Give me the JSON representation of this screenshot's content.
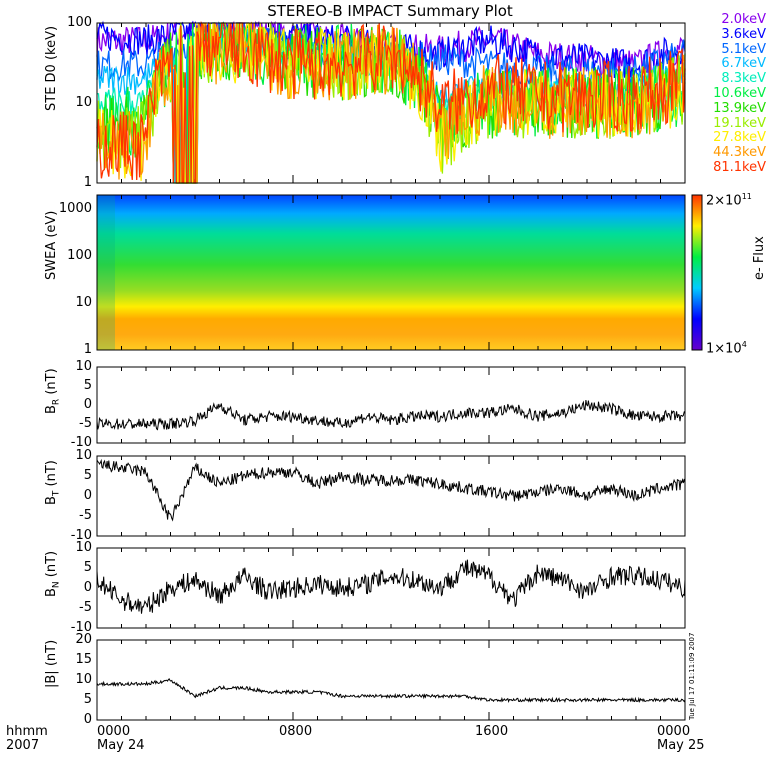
{
  "chart_data": {
    "type": "line",
    "title": "STEREO-B IMPACT Summary Plot",
    "x_axis": {
      "label_rows": [
        "hhmm",
        "2007"
      ],
      "range_hours": [
        0,
        24
      ],
      "ticks": [
        {
          "h": 0,
          "l1": "0000",
          "l2": "May 24"
        },
        {
          "h": 8,
          "l1": "0800",
          "l2": ""
        },
        {
          "h": 16,
          "l1": "1600",
          "l2": ""
        },
        {
          "h": 24,
          "l1": "0000",
          "l2": "May 25"
        }
      ]
    },
    "timestamp": "Tue Jul 17 01:11:09 2007",
    "ste": {
      "ylabel": "STE D0 (keV)",
      "ylim": [
        1,
        100
      ],
      "yscale": "log",
      "ticks": [
        "1",
        "10",
        "100"
      ],
      "hours": [
        0,
        2,
        4,
        6,
        8,
        10,
        12,
        14,
        16,
        18,
        20,
        22,
        24
      ],
      "channels": [
        {
          "name": "2.0keV",
          "color": "#8800ee",
          "values": [
            60,
            60,
            80,
            100,
            70,
            60,
            50,
            45,
            60,
            40,
            35,
            30,
            50
          ]
        },
        {
          "name": "3.6keV",
          "color": "#0000ff",
          "values": [
            70,
            60,
            80,
            100,
            70,
            60,
            50,
            40,
            60,
            40,
            35,
            30,
            50
          ]
        },
        {
          "name": "5.1keV",
          "color": "#0066ff",
          "values": [
            30,
            30,
            60,
            70,
            50,
            40,
            40,
            35,
            30,
            25,
            25,
            25,
            40
          ]
        },
        {
          "name": "6.7keV",
          "color": "#00bbff",
          "values": [
            20,
            20,
            50,
            60,
            40,
            35,
            35,
            12,
            15,
            15,
            15,
            15,
            25
          ]
        },
        {
          "name": "8.3keV",
          "color": "#00eebb",
          "values": [
            10,
            10,
            50,
            60,
            40,
            35,
            35,
            8,
            12,
            12,
            12,
            12,
            20
          ]
        },
        {
          "name": "10.6keV",
          "color": "#00ee44",
          "values": [
            6,
            6,
            50,
            55,
            35,
            35,
            35,
            5,
            10,
            10,
            10,
            10,
            15
          ]
        },
        {
          "name": "13.9keV",
          "color": "#22dd00",
          "values": [
            5,
            5,
            50,
            50,
            35,
            30,
            35,
            4,
            10,
            10,
            10,
            10,
            15
          ]
        },
        {
          "name": "19.1keV",
          "color": "#99ee00",
          "values": [
            4,
            4,
            50,
            50,
            35,
            30,
            35,
            3,
            10,
            10,
            10,
            10,
            15
          ]
        },
        {
          "name": "27.8keV",
          "color": "#ffee00",
          "values": [
            3,
            3,
            50,
            45,
            30,
            30,
            35,
            3,
            10,
            10,
            10,
            10,
            15
          ]
        },
        {
          "name": "44.3keV",
          "color": "#ff9900",
          "values": [
            3,
            3,
            50,
            45,
            30,
            30,
            35,
            3,
            12,
            10,
            10,
            10,
            15
          ]
        },
        {
          "name": "81.1keV",
          "color": "#ff3300",
          "values": [
            3,
            3,
            60,
            45,
            30,
            30,
            40,
            8,
            15,
            12,
            12,
            12,
            18
          ]
        }
      ]
    },
    "swea": {
      "type": "heatmap",
      "ylabel": "SWEA (eV)",
      "ylim": [
        1,
        2000
      ],
      "yscale": "log",
      "ticks": [
        "1",
        "10",
        "100",
        "1000"
      ],
      "colorbar": {
        "label": "e- Flux",
        "max_label": "2×10",
        "max_exp": "11",
        "min_label": "1×10",
        "min_exp": "4"
      }
    },
    "mag": [
      {
        "ylabel": "B",
        "sub": "R",
        "unit": " (nT)",
        "ylim": [
          -10,
          10
        ],
        "ticks": [
          "-10",
          "-5",
          "0",
          "5",
          "10"
        ],
        "values": [
          -5,
          -5,
          -5,
          -5,
          -4,
          0,
          -4,
          -3,
          -3,
          -4,
          -5,
          -3,
          -4,
          -3,
          -3,
          -2,
          -2,
          -1,
          -3,
          -2,
          0,
          -1,
          -3,
          -3,
          -3
        ]
      },
      {
        "ylabel": "B",
        "sub": "T",
        "unit": " (nT)",
        "ylim": [
          -10,
          10
        ],
        "ticks": [
          "-10",
          "-5",
          "0",
          "5",
          "10"
        ],
        "values": [
          8,
          7,
          6,
          -6,
          7,
          3,
          5,
          6,
          6,
          3,
          5,
          4,
          4,
          4,
          3,
          2,
          1,
          0,
          1,
          2,
          0,
          2,
          0,
          2,
          3
        ]
      },
      {
        "ylabel": "B",
        "sub": "N",
        "unit": " (nT)",
        "ylim": [
          -10,
          10
        ],
        "ticks": [
          "-10",
          "-5",
          "0",
          "5",
          "10"
        ],
        "values": [
          2,
          -3,
          -5,
          0,
          2,
          -2,
          3,
          -1,
          0,
          1,
          0,
          1,
          3,
          2,
          0,
          5,
          3,
          -3,
          4,
          2,
          -1,
          3,
          3,
          2,
          0
        ]
      },
      {
        "ylabel": "|B|",
        "sub": "",
        "unit": " (nT)",
        "ylim": [
          0,
          20
        ],
        "ticks": [
          "0",
          "5",
          "10",
          "15",
          "20"
        ],
        "values": [
          9,
          9,
          9,
          10,
          6,
          8,
          8,
          7,
          7,
          7,
          6,
          6,
          6,
          6,
          6,
          6,
          5,
          5,
          5,
          5,
          5,
          5,
          5,
          5,
          5
        ]
      }
    ]
  }
}
